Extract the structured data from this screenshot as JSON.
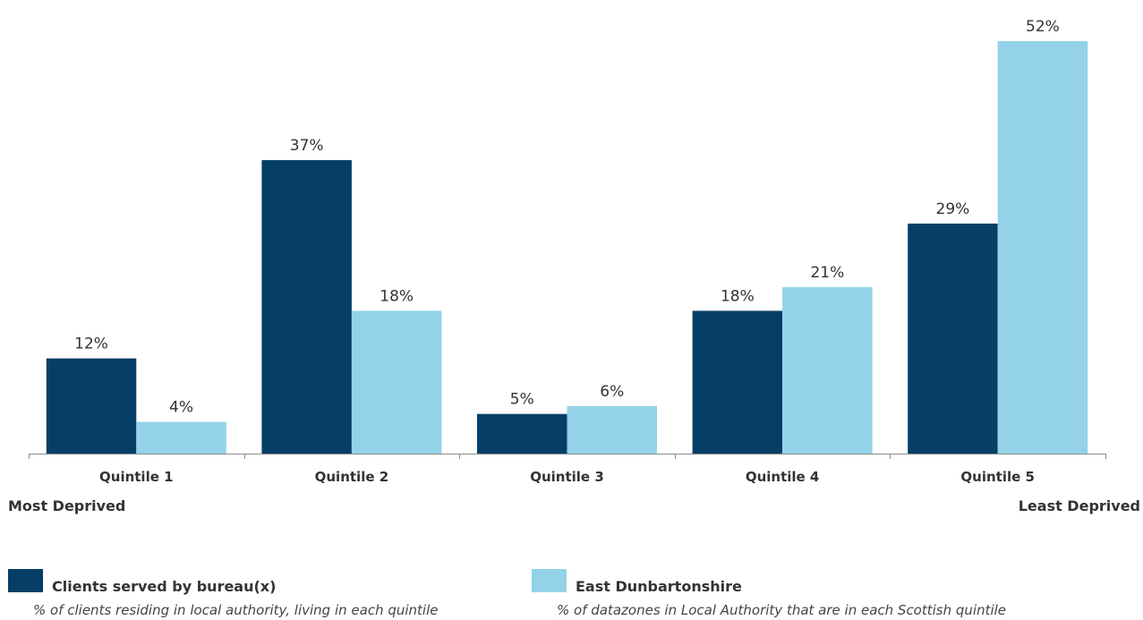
{
  "chart_data": {
    "type": "bar",
    "categories": [
      "Quintile 1",
      "Quintile 2",
      "Quintile 3",
      "Quintile 4",
      "Quintile 5"
    ],
    "series": [
      {
        "name": "Clients served by bureau(x)",
        "description": "% of clients residing in local authority, living in each quintile",
        "color": "#063f66",
        "values": [
          12,
          37,
          5,
          18,
          29
        ],
        "labels": [
          "12%",
          "37%",
          "5%",
          "18%",
          "29%"
        ]
      },
      {
        "name": "East Dunbartonshire",
        "description": "% of datazones in Local Authority that are in each Scottish quintile",
        "color": "#93d2e8",
        "values": [
          4,
          18,
          6,
          21,
          52
        ],
        "labels": [
          "4%",
          "18%",
          "6%",
          "21%",
          "52%"
        ]
      }
    ],
    "ylim": [
      0,
      52
    ],
    "grid": false,
    "axis_end_labels": {
      "left": "Most Deprived",
      "right": "Least Deprived"
    },
    "legend_position": "bottom"
  }
}
